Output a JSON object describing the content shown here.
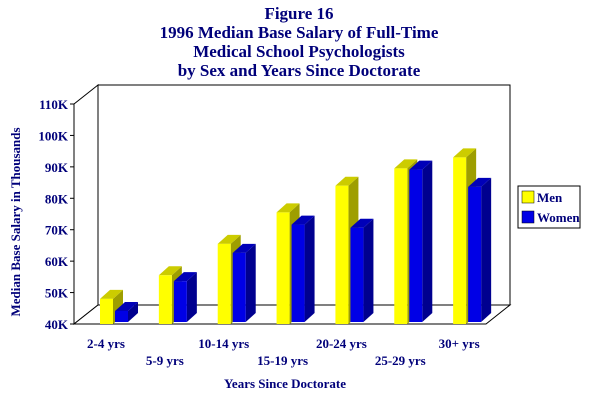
{
  "figure": {
    "label": "Figure 16",
    "title_line1": "1996 Median Base Salary of Full-Time",
    "title_line2": "Medical School Psychologists",
    "title_line3": "by Sex and Years Since Doctorate"
  },
  "colors": {
    "men": "#ffff00",
    "women": "#0000e6",
    "text": "#00007a"
  },
  "chart_data": {
    "type": "bar",
    "title": "1996 Median Base Salary of Full-Time Medical School Psychologists by Sex and Years Since Doctorate",
    "xlabel": "Years Since Doctorate",
    "ylabel": "Median Base Salary in Thousands",
    "categories": [
      "2-4 yrs",
      "5-9 yrs",
      "10-14 yrs",
      "15-19 yrs",
      "20-24 yrs",
      "25-29 yrs",
      "30+ yrs"
    ],
    "series": [
      {
        "name": "Men",
        "values": [
          48,
          55.5,
          65.5,
          75.5,
          84,
          89.5,
          93
        ]
      },
      {
        "name": "Women",
        "values": [
          43.5,
          53,
          62,
          71,
          70,
          88.5,
          83
        ]
      }
    ],
    "yticks": [
      "40K",
      "50K",
      "60K",
      "70K",
      "80K",
      "90K",
      "100K",
      "110K"
    ],
    "ylim": [
      40,
      110
    ],
    "legend_position": "right",
    "grid": false
  }
}
